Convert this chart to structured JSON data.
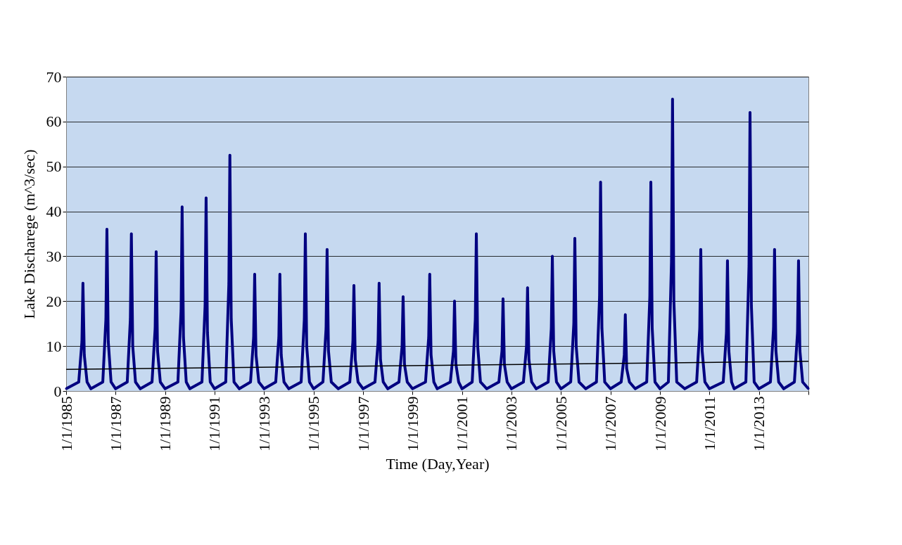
{
  "chart_data": {
    "type": "line",
    "xlabel": "Time (Day,Year)",
    "ylabel": "Lake  Discharege  (m^3/sec)",
    "xlim": [
      "1985-01-01",
      "2015-01-01"
    ],
    "ylim": [
      0,
      70
    ],
    "yticks": [
      0,
      10,
      20,
      30,
      40,
      50,
      60,
      70
    ],
    "xticks": [
      {
        "value": "1985-01-01",
        "label": "1/1/1985"
      },
      {
        "value": "1987-01-01",
        "label": "1/1/1987"
      },
      {
        "value": "1989-01-01",
        "label": "1/1/1989"
      },
      {
        "value": "1991-01-01",
        "label": "1/1/1991"
      },
      {
        "value": "1993-01-01",
        "label": "1/1/1993"
      },
      {
        "value": "1995-01-01",
        "label": "1/1/1995"
      },
      {
        "value": "1997-01-01",
        "label": "1/1/1997"
      },
      {
        "value": "1999-01-01",
        "label": "1/1/1999"
      },
      {
        "value": "2001-01-01",
        "label": "1/1/2001"
      },
      {
        "value": "2003-01-01",
        "label": "1/1/2003"
      },
      {
        "value": "2005-01-01",
        "label": "1/1/2005"
      },
      {
        "value": "2007-01-01",
        "label": "1/1/2007"
      },
      {
        "value": "2009-01-01",
        "label": "1/1/2009"
      },
      {
        "value": "2011-01-01",
        "label": "1/1/2011"
      },
      {
        "value": "2013-01-01",
        "label": "1/1/2013"
      },
      {
        "value": "2015-01-01",
        "label": null
      }
    ],
    "grid": "y",
    "legend": false,
    "marker": "diamond",
    "line_style": "solid",
    "series": [
      {
        "color": "#000080",
        "x": [
          "1985-01-01",
          "1985-07-06",
          "1985-08-22",
          "1985-09-06",
          "1985-09-26",
          "1985-11-06",
          "1986-01-01",
          "1986-06-26",
          "1986-08-11",
          "1986-08-26",
          "1986-09-15",
          "1986-10-26",
          "1987-01-01",
          "1987-06-22",
          "1987-08-07",
          "1987-08-22",
          "1987-09-11",
          "1987-10-22",
          "1988-01-01",
          "1988-06-22",
          "1988-08-07",
          "1988-08-22",
          "1988-09-11",
          "1988-10-22",
          "1989-01-01",
          "1989-07-09",
          "1989-08-25",
          "1989-09-09",
          "1989-09-29",
          "1989-11-09",
          "1990-01-01",
          "1990-06-29",
          "1990-08-14",
          "1990-08-29",
          "1990-09-18",
          "1990-10-29",
          "1991-01-01",
          "1991-06-15",
          "1991-07-31",
          "1991-08-15",
          "1991-09-04",
          "1991-10-15",
          "1992-01-01",
          "1992-06-15",
          "1992-07-31",
          "1992-08-15",
          "1992-09-04",
          "1992-10-15",
          "1993-01-01",
          "1993-06-22",
          "1993-08-07",
          "1993-08-22",
          "1993-09-11",
          "1993-10-22",
          "1994-01-01",
          "1994-07-02",
          "1994-08-18",
          "1994-09-02",
          "1994-09-22",
          "1994-11-02",
          "1995-01-01",
          "1995-05-20",
          "1995-07-05",
          "1995-07-20",
          "1995-08-09",
          "1995-09-20",
          "1996-01-01",
          "1996-06-19",
          "1996-08-04",
          "1996-08-19",
          "1996-09-08",
          "1996-10-19",
          "1997-01-01",
          "1997-06-26",
          "1997-08-11",
          "1997-08-26",
          "1997-09-15",
          "1997-10-26",
          "1998-01-01",
          "1998-06-15",
          "1998-07-31",
          "1998-08-15",
          "1998-09-04",
          "1998-10-15",
          "1999-01-01",
          "1999-07-12",
          "1999-08-28",
          "1999-09-12",
          "1999-10-02",
          "1999-11-12",
          "2000-01-01",
          "2000-07-12",
          "2000-08-28",
          "2000-09-12",
          "2000-10-02",
          "2000-11-12",
          "2001-01-01",
          "2001-05-31",
          "2001-07-16",
          "2001-07-31",
          "2001-08-20",
          "2001-09-30",
          "2002-01-01",
          "2002-06-29",
          "2002-08-14",
          "2002-08-29",
          "2002-09-18",
          "2002-10-29",
          "2003-01-01",
          "2003-06-26",
          "2003-08-11",
          "2003-08-26",
          "2003-09-15",
          "2003-10-26",
          "2004-01-01",
          "2004-06-26",
          "2004-08-11",
          "2004-08-26",
          "2004-09-15",
          "2004-10-26",
          "2005-01-01",
          "2005-05-24",
          "2005-07-09",
          "2005-07-24",
          "2005-08-13",
          "2005-09-24",
          "2006-01-01",
          "2006-06-08",
          "2006-07-24",
          "2006-08-08",
          "2006-08-28",
          "2006-10-08",
          "2007-01-01",
          "2007-06-08",
          "2007-07-24",
          "2007-08-08",
          "2007-08-28",
          "2007-10-08",
          "2008-01-01",
          "2008-06-19",
          "2008-08-04",
          "2008-08-19",
          "2008-09-08",
          "2008-10-19",
          "2009-01-01",
          "2009-05-05",
          "2009-06-20",
          "2009-07-05",
          "2009-07-25",
          "2009-09-05",
          "2010-01-01",
          "2010-06-26",
          "2010-08-11",
          "2010-08-26",
          "2010-09-15",
          "2010-10-26",
          "2011-01-01",
          "2011-07-24",
          "2011-09-09",
          "2011-09-24",
          "2011-10-14",
          "2011-11-24",
          "2012-01-01",
          "2012-06-22",
          "2012-08-07",
          "2012-08-22",
          "2012-09-11",
          "2012-10-22",
          "2013-01-01",
          "2013-06-19",
          "2013-08-04",
          "2013-08-19",
          "2013-09-08",
          "2013-10-19",
          "2014-01-01",
          "2014-06-08",
          "2014-07-24",
          "2014-08-08",
          "2014-08-28",
          "2014-10-08",
          "2015-01-01"
        ],
        "values": [
          0.5,
          2,
          11,
          24,
          8,
          2,
          0.5,
          2,
          16,
          36,
          11,
          2,
          0.5,
          2,
          16,
          35,
          10,
          2,
          0.5,
          2,
          14,
          31,
          9,
          2,
          0.5,
          2,
          18,
          41,
          12,
          2,
          0.5,
          2,
          19,
          43,
          13,
          2,
          0.5,
          2,
          24,
          52.5,
          16,
          2,
          0.5,
          2,
          12,
          26,
          8,
          2,
          0.5,
          2,
          12,
          26,
          8,
          2,
          0.5,
          2,
          16,
          35,
          10,
          2,
          0.5,
          2,
          14,
          31.5,
          9,
          2,
          0.5,
          2,
          11,
          23.5,
          7,
          2,
          0.5,
          2,
          11,
          24,
          7,
          2,
          0.5,
          2,
          10,
          21,
          6,
          2,
          0.5,
          2,
          12,
          26,
          8,
          2,
          0.5,
          2,
          9,
          20,
          6,
          2,
          0.5,
          2,
          16,
          35,
          10,
          2,
          0.5,
          2,
          9,
          20.5,
          6,
          2,
          0.5,
          2,
          10,
          23,
          7,
          2,
          0.5,
          2,
          14,
          30,
          9,
          2,
          0.5,
          2,
          15,
          34,
          10,
          2,
          0.5,
          2,
          21,
          46.5,
          14,
          2,
          0.5,
          2,
          8,
          17,
          5,
          2,
          0.5,
          2,
          21,
          46.5,
          14,
          2,
          0.5,
          2,
          29,
          65,
          20,
          2,
          0.5,
          2,
          14,
          31.5,
          9,
          2,
          0.5,
          2,
          13,
          29,
          9,
          2,
          0.5,
          2,
          28,
          62,
          19,
          2,
          0.5,
          2,
          14,
          31.5,
          9,
          2,
          0.5,
          2,
          13,
          29,
          9,
          2,
          0.5
        ]
      },
      {
        "type": "line",
        "color": "#000000",
        "marker": "none",
        "x": [
          "1985-01-01",
          "2015-01-01"
        ],
        "values": [
          4.8,
          6.6
        ]
      }
    ]
  }
}
